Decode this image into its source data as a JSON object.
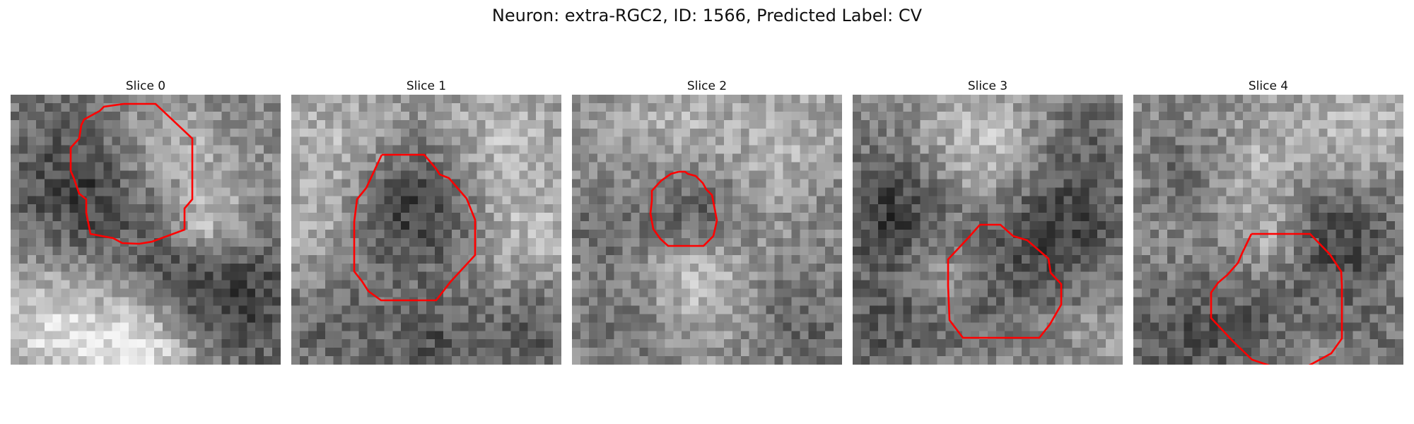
{
  "figure": {
    "title": "Neuron: extra-RGC2, ID: 1566, Predicted Label: CV",
    "outline_color": "#ff0000"
  },
  "slices": [
    {
      "title": "Slice 0"
    },
    {
      "title": "Slice 1"
    },
    {
      "title": "Slice 2"
    },
    {
      "title": "Slice 3"
    },
    {
      "title": "Slice 4"
    }
  ]
}
